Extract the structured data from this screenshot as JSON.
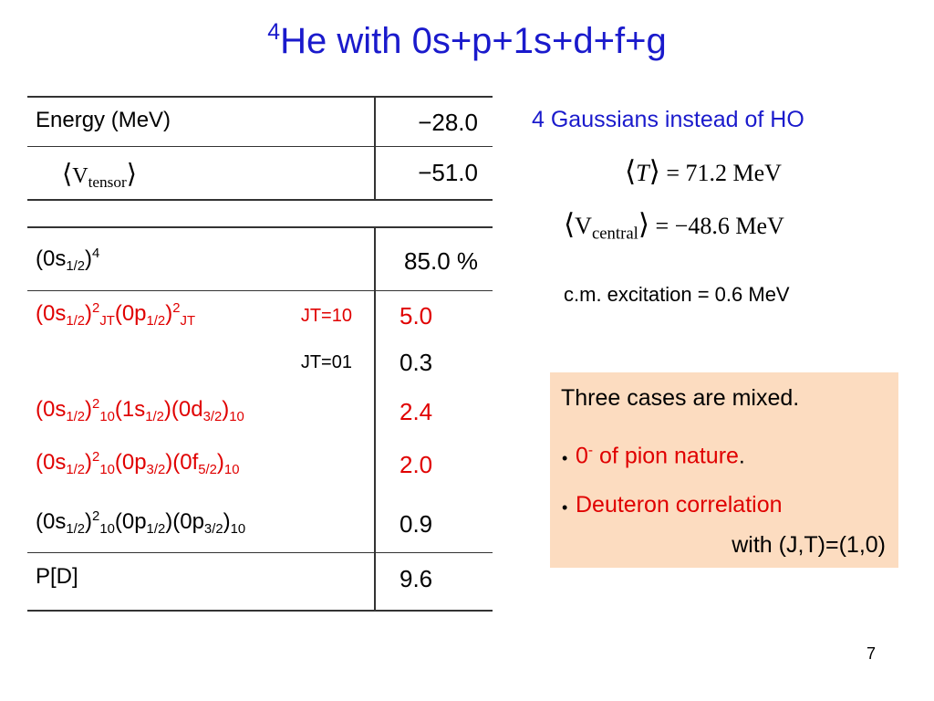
{
  "title": {
    "parts": [
      {
        "text": "4",
        "pos": "sup"
      },
      {
        "text": "He with 0s+p+1s+d+f+g"
      }
    ],
    "color": "#1a1acc"
  },
  "table": {
    "rows": [
      {
        "label": {
          "parts": [
            {
              "text": "Energy (MeV)"
            }
          ]
        },
        "value": "−28.0",
        "color": "#000000"
      },
      {
        "label": {
          "parts": [
            {
              "text": "⟨",
              "pos": "big"
            },
            {
              "text": "V",
              "pos": "serif"
            },
            {
              "text": "tensor",
              "pos": "serifsub"
            },
            {
              "text": "⟩",
              "pos": "big"
            }
          ]
        },
        "value": "−51.0",
        "color": "#000000"
      },
      {
        "label": {
          "parts": [
            {
              "text": "(0s"
            },
            {
              "text": "1/2",
              "pos": "sub"
            },
            {
              "text": ")"
            },
            {
              "text": "4",
              "pos": "sup"
            }
          ]
        },
        "value": "85.0 %",
        "color": "#000000"
      },
      {
        "label": {
          "parts": [
            {
              "text": "(0s"
            },
            {
              "text": "1/2",
              "pos": "sub"
            },
            {
              "text": ")"
            },
            {
              "text": "2",
              "pos": "sup"
            },
            {
              "text": "JT",
              "pos": "sub"
            },
            {
              "text": "(0p"
            },
            {
              "text": "1/2",
              "pos": "sub"
            },
            {
              "text": ")"
            },
            {
              "text": "2",
              "pos": "sup"
            },
            {
              "text": "JT",
              "pos": "sub"
            }
          ]
        },
        "tag": "JT=10",
        "value": "5.0",
        "color": "#e00000"
      },
      {
        "tag": "JT=01",
        "value": "0.3",
        "color": "#000000"
      },
      {
        "label": {
          "parts": [
            {
              "text": "(0s"
            },
            {
              "text": "1/2",
              "pos": "sub"
            },
            {
              "text": ")"
            },
            {
              "text": "2",
              "pos": "sup"
            },
            {
              "text": "10",
              "pos": "sub"
            },
            {
              "text": "(1s"
            },
            {
              "text": "1/2",
              "pos": "sub"
            },
            {
              "text": ")(0d"
            },
            {
              "text": "3/2",
              "pos": "sub"
            },
            {
              "text": ")"
            },
            {
              "text": "10",
              "pos": "sub"
            }
          ]
        },
        "value": "2.4",
        "color": "#e00000"
      },
      {
        "label": {
          "parts": [
            {
              "text": "(0s"
            },
            {
              "text": "1/2",
              "pos": "sub"
            },
            {
              "text": ")"
            },
            {
              "text": "2",
              "pos": "sup"
            },
            {
              "text": "10",
              "pos": "sub"
            },
            {
              "text": "(0p"
            },
            {
              "text": "3/2",
              "pos": "sub"
            },
            {
              "text": ")(0f"
            },
            {
              "text": "5/2",
              "pos": "sub"
            },
            {
              "text": ")"
            },
            {
              "text": "10",
              "pos": "sub"
            }
          ]
        },
        "value": "2.0",
        "color": "#e00000"
      },
      {
        "label": {
          "parts": [
            {
              "text": "(0s"
            },
            {
              "text": "1/2",
              "pos": "sub"
            },
            {
              "text": ")"
            },
            {
              "text": "2",
              "pos": "sup"
            },
            {
              "text": "10",
              "pos": "sub"
            },
            {
              "text": "(0p"
            },
            {
              "text": "1/2",
              "pos": "sub"
            },
            {
              "text": ")(0p"
            },
            {
              "text": "3/2",
              "pos": "sub"
            },
            {
              "text": ")"
            },
            {
              "text": "10",
              "pos": "sub"
            }
          ]
        },
        "value": "0.9",
        "color": "#000000"
      },
      {
        "label": {
          "parts": [
            {
              "text": "P[D]"
            }
          ]
        },
        "value": "9.6",
        "color": "#000000"
      }
    ]
  },
  "side": {
    "heading": {
      "text": "4 Gaussians instead of HO",
      "color": "#1a1acc"
    },
    "math": [
      {
        "parts": [
          {
            "text": "⟨",
            "pos": "big"
          },
          {
            "text": "T",
            "pos": "it"
          },
          {
            "text": "⟩",
            "pos": "big"
          },
          {
            "text": " =   71.2  MeV",
            "pos": "serif"
          }
        ]
      },
      {
        "parts": [
          {
            "text": "⟨",
            "pos": "big"
          },
          {
            "text": "V",
            "pos": "serif"
          },
          {
            "text": "central",
            "pos": "serifsub"
          },
          {
            "text": "⟩",
            "pos": "big"
          },
          {
            "text": " = −48.6  MeV",
            "pos": "serif"
          }
        ]
      }
    ],
    "note": "c.m. excitation = 0.6 MeV"
  },
  "box": {
    "fill": "#fcdcc0",
    "heading": "Three cases are mixed.",
    "bullets": [
      {
        "bullet": "•",
        "parts": [
          {
            "text": "0",
            "color": "#e00000"
          },
          {
            "text": "-",
            "pos": "sup",
            "color": "#e00000"
          },
          {
            "text": " of pion nature",
            "color": "#e00000"
          },
          {
            "text": "."
          }
        ]
      },
      {
        "bullet": "•",
        "parts": [
          {
            "text": "Deuteron correlation",
            "color": "#e00000"
          }
        ],
        "cont": "with (J,T)=(1,0)"
      }
    ]
  },
  "page_number": "7"
}
